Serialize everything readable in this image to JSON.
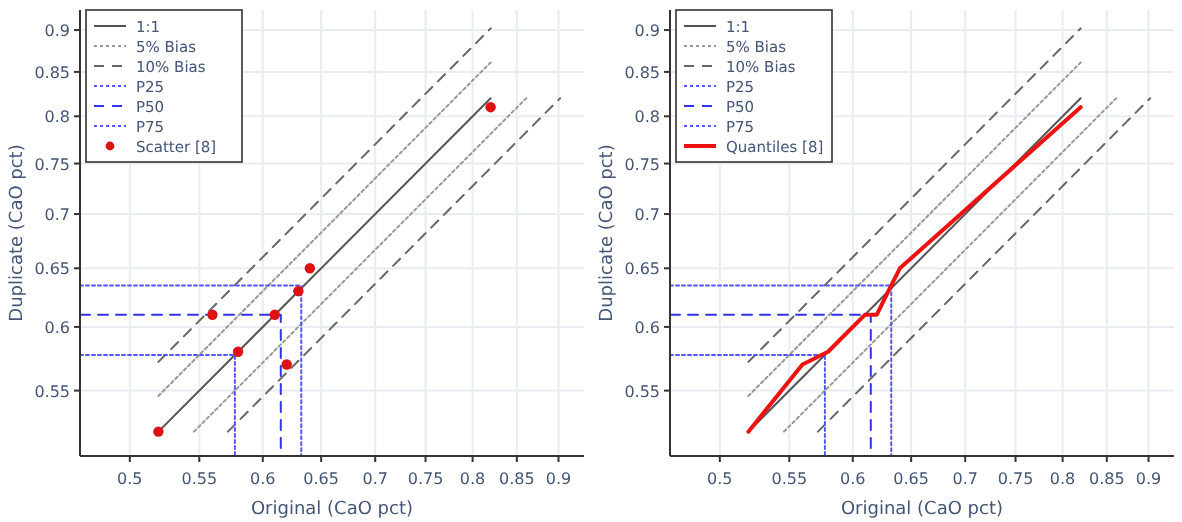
{
  "chart_data": [
    {
      "type": "line",
      "xlabel": "Original (CaO pct)",
      "ylabel": "Duplicate (CaO pct)",
      "xlim": [
        0.467,
        0.932
      ],
      "ylim": [
        0.503,
        0.925
      ],
      "xticks": [
        0.5,
        0.55,
        0.6,
        0.65,
        0.7,
        0.75,
        0.8,
        0.85,
        0.9
      ],
      "yticks": [
        0.55,
        0.6,
        0.65,
        0.7,
        0.75,
        0.8,
        0.85,
        0.9
      ],
      "log": "xy",
      "grid": true,
      "legend": "top left",
      "series": [
        {
          "name": "1:1",
          "color": "#555555",
          "line_style": "solid",
          "x": [
            0.52,
            0.82
          ],
          "values": [
            0.52,
            0.82
          ]
        },
        {
          "name": "5% Bias",
          "color": "#999999",
          "line_style": "dotted",
          "x": [
            0.52,
            0.82
          ],
          "values": [
            0.546,
            0.861
          ]
        },
        {
          "color": "#999999",
          "line_style": "dotted",
          "x": [
            0.546,
            0.861
          ],
          "values": [
            0.52,
            0.82
          ]
        },
        {
          "name": "10% Bias",
          "color": "#666666",
          "line_style": "dashed",
          "x": [
            0.52,
            0.82
          ],
          "values": [
            0.572,
            0.902
          ]
        },
        {
          "color": "#666666",
          "line_style": "dashed",
          "x": [
            0.572,
            0.902
          ],
          "values": [
            0.52,
            0.82
          ]
        },
        {
          "name": "P25",
          "color": "#5555ff",
          "line_style": "dotted",
          "x": [
            0.467,
            0.5775,
            0.5775
          ],
          "values": [
            0.5775,
            0.5775,
            0.503
          ]
        },
        {
          "name": "P50",
          "color": "#3333ee",
          "line_style": "dashed",
          "x": [
            0.467,
            0.615,
            0.615
          ],
          "values": [
            0.61,
            0.61,
            0.503
          ]
        },
        {
          "name": "P75",
          "color": "#5555ff",
          "line_style": "dotted",
          "x": [
            0.467,
            0.6325,
            0.6325
          ],
          "values": [
            0.635,
            0.635,
            0.503
          ]
        },
        {
          "name": "Scatter [8]",
          "type": "scatter",
          "marker": "circle",
          "color": "#dd1111",
          "x": [
            0.52,
            0.56,
            0.58,
            0.61,
            0.62,
            0.63,
            0.64,
            0.82
          ],
          "values": [
            0.52,
            0.61,
            0.58,
            0.61,
            0.57,
            0.63,
            0.65,
            0.81
          ]
        }
      ]
    },
    {
      "type": "line",
      "xlabel": "Original (CaO pct)",
      "ylabel": "Duplicate (CaO pct)",
      "xlim": [
        0.467,
        0.932
      ],
      "ylim": [
        0.503,
        0.925
      ],
      "xticks": [
        0.5,
        0.55,
        0.6,
        0.65,
        0.7,
        0.75,
        0.8,
        0.85,
        0.9
      ],
      "yticks": [
        0.55,
        0.6,
        0.65,
        0.7,
        0.75,
        0.8,
        0.85,
        0.9
      ],
      "log": "xy",
      "grid": true,
      "legend": "top left",
      "series": [
        {
          "name": "1:1",
          "color": "#555555",
          "line_style": "solid",
          "x": [
            0.52,
            0.82
          ],
          "values": [
            0.52,
            0.82
          ]
        },
        {
          "name": "5% Bias",
          "color": "#999999",
          "line_style": "dotted",
          "x": [
            0.52,
            0.82
          ],
          "values": [
            0.546,
            0.861
          ]
        },
        {
          "color": "#999999",
          "line_style": "dotted",
          "x": [
            0.546,
            0.861
          ],
          "values": [
            0.52,
            0.82
          ]
        },
        {
          "name": "10% Bias",
          "color": "#666666",
          "line_style": "dashed",
          "x": [
            0.52,
            0.82
          ],
          "values": [
            0.572,
            0.902
          ]
        },
        {
          "color": "#666666",
          "line_style": "dashed",
          "x": [
            0.572,
            0.902
          ],
          "values": [
            0.52,
            0.82
          ]
        },
        {
          "name": "P25",
          "color": "#5555ff",
          "line_style": "dotted",
          "x": [
            0.467,
            0.5775,
            0.5775
          ],
          "values": [
            0.5775,
            0.5775,
            0.503
          ]
        },
        {
          "name": "P50",
          "color": "#3333ee",
          "line_style": "dashed",
          "x": [
            0.467,
            0.615,
            0.615
          ],
          "values": [
            0.61,
            0.61,
            0.503
          ]
        },
        {
          "name": "P75",
          "color": "#5555ff",
          "line_style": "dotted",
          "x": [
            0.467,
            0.6325,
            0.6325
          ],
          "values": [
            0.635,
            0.635,
            0.503
          ]
        },
        {
          "name": "Quantiles [8]",
          "color": "#ee1111",
          "line_style": "solid",
          "x": [
            0.52,
            0.56,
            0.58,
            0.61,
            0.62,
            0.63,
            0.64,
            0.82
          ],
          "values": [
            0.52,
            0.57,
            0.58,
            0.61,
            0.61,
            0.63,
            0.65,
            0.81
          ]
        }
      ]
    }
  ]
}
